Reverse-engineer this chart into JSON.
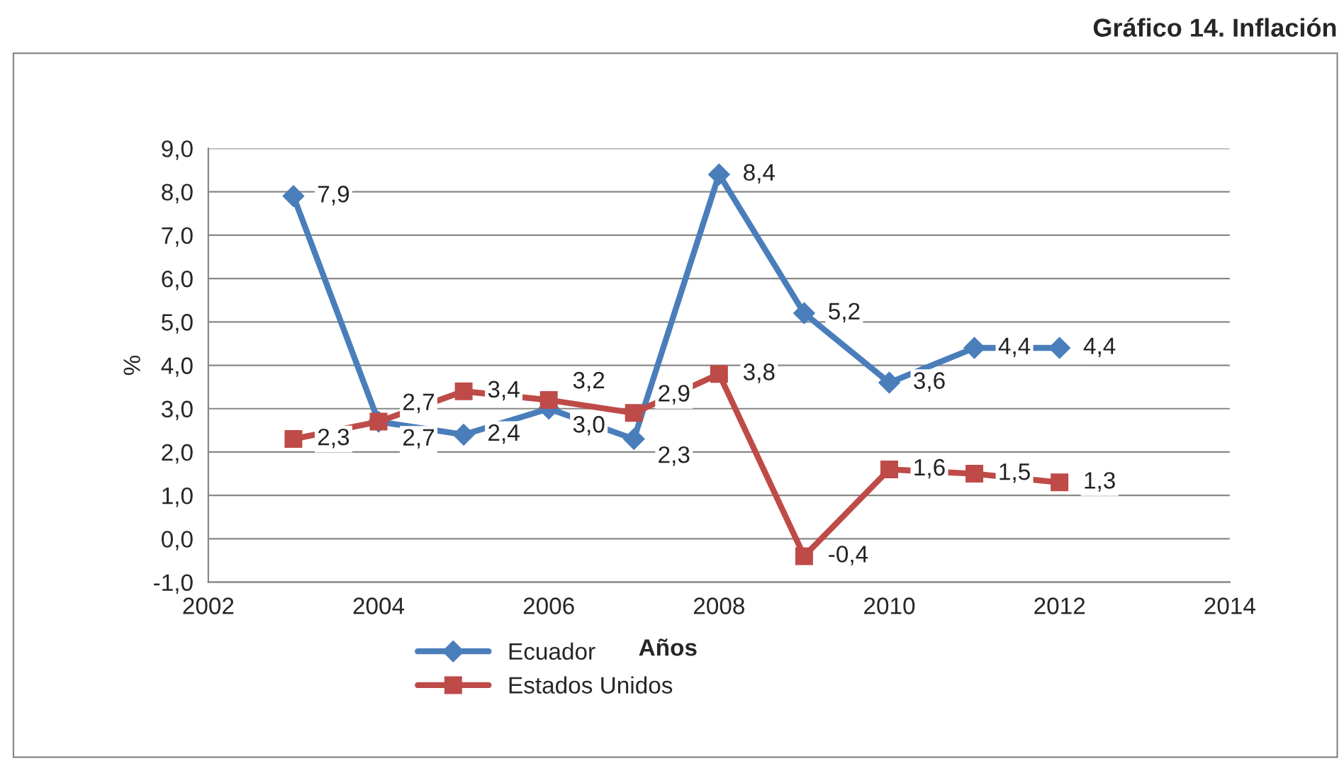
{
  "chart_data": {
    "type": "line",
    "title": "Gráfico 14. Inflación",
    "xlabel": "Años",
    "ylabel": "%",
    "x": [
      2003,
      2004,
      2005,
      2006,
      2007,
      2008,
      2009,
      2010,
      2011,
      2012
    ],
    "series": [
      {
        "name": "Ecuador",
        "color": "#4a7ebb",
        "marker": "diamond",
        "values": [
          7.9,
          2.7,
          2.4,
          3.0,
          2.3,
          8.4,
          5.2,
          3.6,
          4.4,
          4.4
        ],
        "value_labels": [
          "7,9",
          "2,7",
          "2,4",
          "3,0",
          "2,3",
          "8,4",
          "5,2",
          "3,6",
          "4,4",
          "4,4"
        ]
      },
      {
        "name": "Estados Unidos",
        "color": "#be4b48",
        "marker": "square",
        "values": [
          2.3,
          2.7,
          3.4,
          3.2,
          2.9,
          3.8,
          -0.4,
          1.6,
          1.5,
          1.3
        ],
        "value_labels": [
          "2,3",
          "2,7",
          "3,4",
          "3,2",
          "2,9",
          "3,8",
          "-0,4",
          "1,6",
          "1,5",
          "1,3"
        ]
      }
    ],
    "xlim": [
      2002,
      2014
    ],
    "xticks": [
      2002,
      2004,
      2006,
      2008,
      2010,
      2012,
      2014
    ],
    "ylim": [
      -1,
      9
    ],
    "yticks": [
      {
        "value": -1,
        "label": "-1,0"
      },
      {
        "value": 0,
        "label": "0,0"
      },
      {
        "value": 1,
        "label": "1,0"
      },
      {
        "value": 2,
        "label": "2,0"
      },
      {
        "value": 3,
        "label": "3,0"
      },
      {
        "value": 4,
        "label": "4,0"
      },
      {
        "value": 5,
        "label": "5,0"
      },
      {
        "value": 6,
        "label": "6,0"
      },
      {
        "value": 7,
        "label": "7,0"
      },
      {
        "value": 8,
        "label": "8,0"
      },
      {
        "value": 9,
        "label": "9,0"
      }
    ],
    "grid": "y",
    "legend": "bottom",
    "line_style": "solid"
  }
}
